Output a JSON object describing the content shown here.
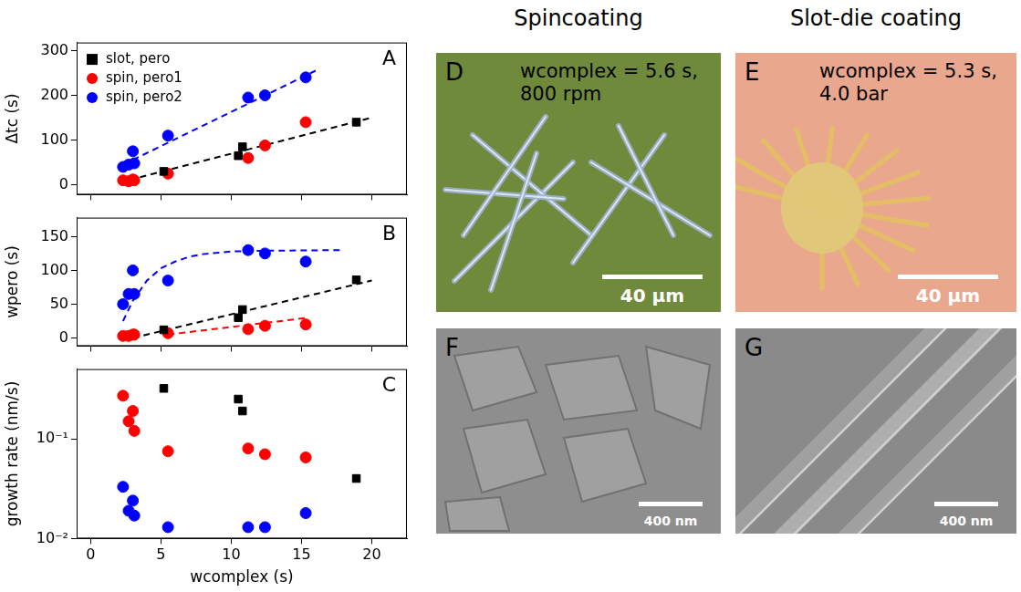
{
  "chart_data": [
    {
      "type": "scatter",
      "panel_label": "A",
      "y_label": "Δtc (s)",
      "xlim": [
        -1,
        22.5
      ],
      "xticks": [
        0,
        5,
        10,
        15,
        20
      ],
      "ylim": [
        -22,
        318
      ],
      "yticks": [
        0,
        100,
        200,
        300
      ],
      "grid": false,
      "tick_labels": "y",
      "legend": "upper left",
      "series": [
        {
          "type": "line",
          "line_style": "dashed",
          "color": "#0000ff",
          "x": [
            2.3,
            16
          ],
          "values": [
            45,
            255
          ]
        },
        {
          "type": "line",
          "line_style": "dashed",
          "color": "#000000",
          "x": [
            2,
            20
          ],
          "values": [
            5,
            150
          ]
        },
        {
          "name": "slot, pero",
          "type": "scatter",
          "marker": "square",
          "color": "#000000",
          "x": [
            5.2,
            10.5,
            10.8,
            18.9
          ],
          "values": [
            30,
            65,
            85,
            140
          ]
        },
        {
          "name": "spin, pero1",
          "type": "scatter",
          "marker": "circle",
          "color": "#ff0000",
          "x": [
            2.3,
            2.7,
            3.0,
            3.1,
            5.5,
            11.2,
            12.4,
            15.3
          ],
          "values": [
            10,
            8,
            12,
            10,
            25,
            60,
            88,
            140
          ]
        },
        {
          "name": "spin, pero2",
          "type": "scatter",
          "marker": "circle",
          "color": "#0000ff",
          "x": [
            2.3,
            2.7,
            3.0,
            3.1,
            5.5,
            11.2,
            12.4,
            15.3
          ],
          "values": [
            40,
            45,
            75,
            48,
            110,
            195,
            200,
            240
          ]
        }
      ]
    },
    {
      "type": "scatter",
      "panel_label": "B",
      "y_label": "wpero (s)",
      "xlim": [
        -1,
        22.5
      ],
      "xticks": [
        0,
        5,
        10,
        15,
        20
      ],
      "ylim": [
        -12,
        178
      ],
      "yticks": [
        0,
        50,
        100,
        150
      ],
      "grid": false,
      "tick_labels": "y",
      "series": [
        {
          "type": "line",
          "line_style": "dashed",
          "color": "#0000ff",
          "x": [
            2.3,
            3,
            4,
            5,
            6,
            7,
            8,
            10,
            12,
            18
          ],
          "values": [
            25,
            55,
            85,
            103,
            113,
            120,
            124,
            128,
            129,
            130
          ]
        },
        {
          "type": "line",
          "line_style": "dashed",
          "color": "#000000",
          "x": [
            3,
            20
          ],
          "values": [
            0,
            85
          ]
        },
        {
          "type": "line",
          "line_style": "dashed",
          "color": "#ff0000",
          "x": [
            5.5,
            15.5
          ],
          "values": [
            5,
            30
          ]
        },
        {
          "name": "slot, pero",
          "type": "scatter",
          "marker": "square",
          "color": "#000000",
          "x": [
            5.2,
            10.5,
            10.8,
            18.9
          ],
          "values": [
            12,
            30,
            42,
            86
          ]
        },
        {
          "name": "spin, pero1",
          "type": "scatter",
          "marker": "circle",
          "color": "#ff0000",
          "x": [
            2.3,
            2.7,
            3.0,
            3.1,
            5.5,
            11.2,
            12.4,
            15.3
          ],
          "values": [
            3,
            3,
            5,
            5,
            7,
            13,
            18,
            20
          ]
        },
        {
          "name": "spin, pero2",
          "type": "scatter",
          "marker": "circle",
          "color": "#0000ff",
          "x": [
            2.3,
            2.7,
            3.0,
            3.1,
            5.5,
            11.2,
            12.4,
            15.3
          ],
          "values": [
            50,
            65,
            100,
            65,
            85,
            130,
            125,
            113
          ]
        }
      ]
    },
    {
      "type": "scatter",
      "panel_label": "C",
      "y_label": "growth rate (nm/s)",
      "x_label": "wcomplex (s)",
      "xlim": [
        -1,
        22.5
      ],
      "xticks": [
        0,
        5,
        10,
        15,
        20
      ],
      "ylim": [
        0.01,
        0.5
      ],
      "yticks": [
        {
          "value": 0.01,
          "label": "10⁻²"
        },
        {
          "value": 0.1,
          "label": "10⁻¹"
        }
      ],
      "log": "y",
      "grid": false,
      "series": [
        {
          "name": "slot, pero",
          "type": "scatter",
          "marker": "square",
          "color": "#000000",
          "x": [
            5.2,
            10.5,
            10.8,
            18.9
          ],
          "values": [
            0.32,
            0.25,
            0.19,
            0.04
          ]
        },
        {
          "name": "spin, pero1",
          "type": "scatter",
          "marker": "circle",
          "color": "#ff0000",
          "x": [
            2.3,
            2.7,
            3.0,
            3.1,
            5.5,
            11.2,
            12.4,
            15.3
          ],
          "values": [
            0.27,
            0.15,
            0.19,
            0.12,
            0.075,
            0.08,
            0.07,
            0.065
          ]
        },
        {
          "name": "spin, pero2",
          "type": "scatter",
          "marker": "circle",
          "color": "#0000ff",
          "x": [
            2.3,
            2.7,
            3.0,
            3.1,
            5.5,
            11.2,
            12.4,
            15.3
          ],
          "values": [
            0.033,
            0.019,
            0.024,
            0.017,
            0.013,
            0.013,
            0.013,
            0.018
          ]
        }
      ]
    }
  ],
  "images": {
    "columns": [
      "Spincoating",
      "Slot-die coating"
    ],
    "panels": [
      {
        "label": "D",
        "annotation": "wcomplex = 5.6 s, 800 rpm",
        "scale_bar": "40 µm"
      },
      {
        "label": "E",
        "annotation": "wcomplex = 5.3 s, 4.0 bar",
        "scale_bar": "40 µm"
      },
      {
        "label": "F",
        "scale_bar": "400 nm"
      },
      {
        "label": "G",
        "scale_bar": "400 nm"
      }
    ]
  }
}
